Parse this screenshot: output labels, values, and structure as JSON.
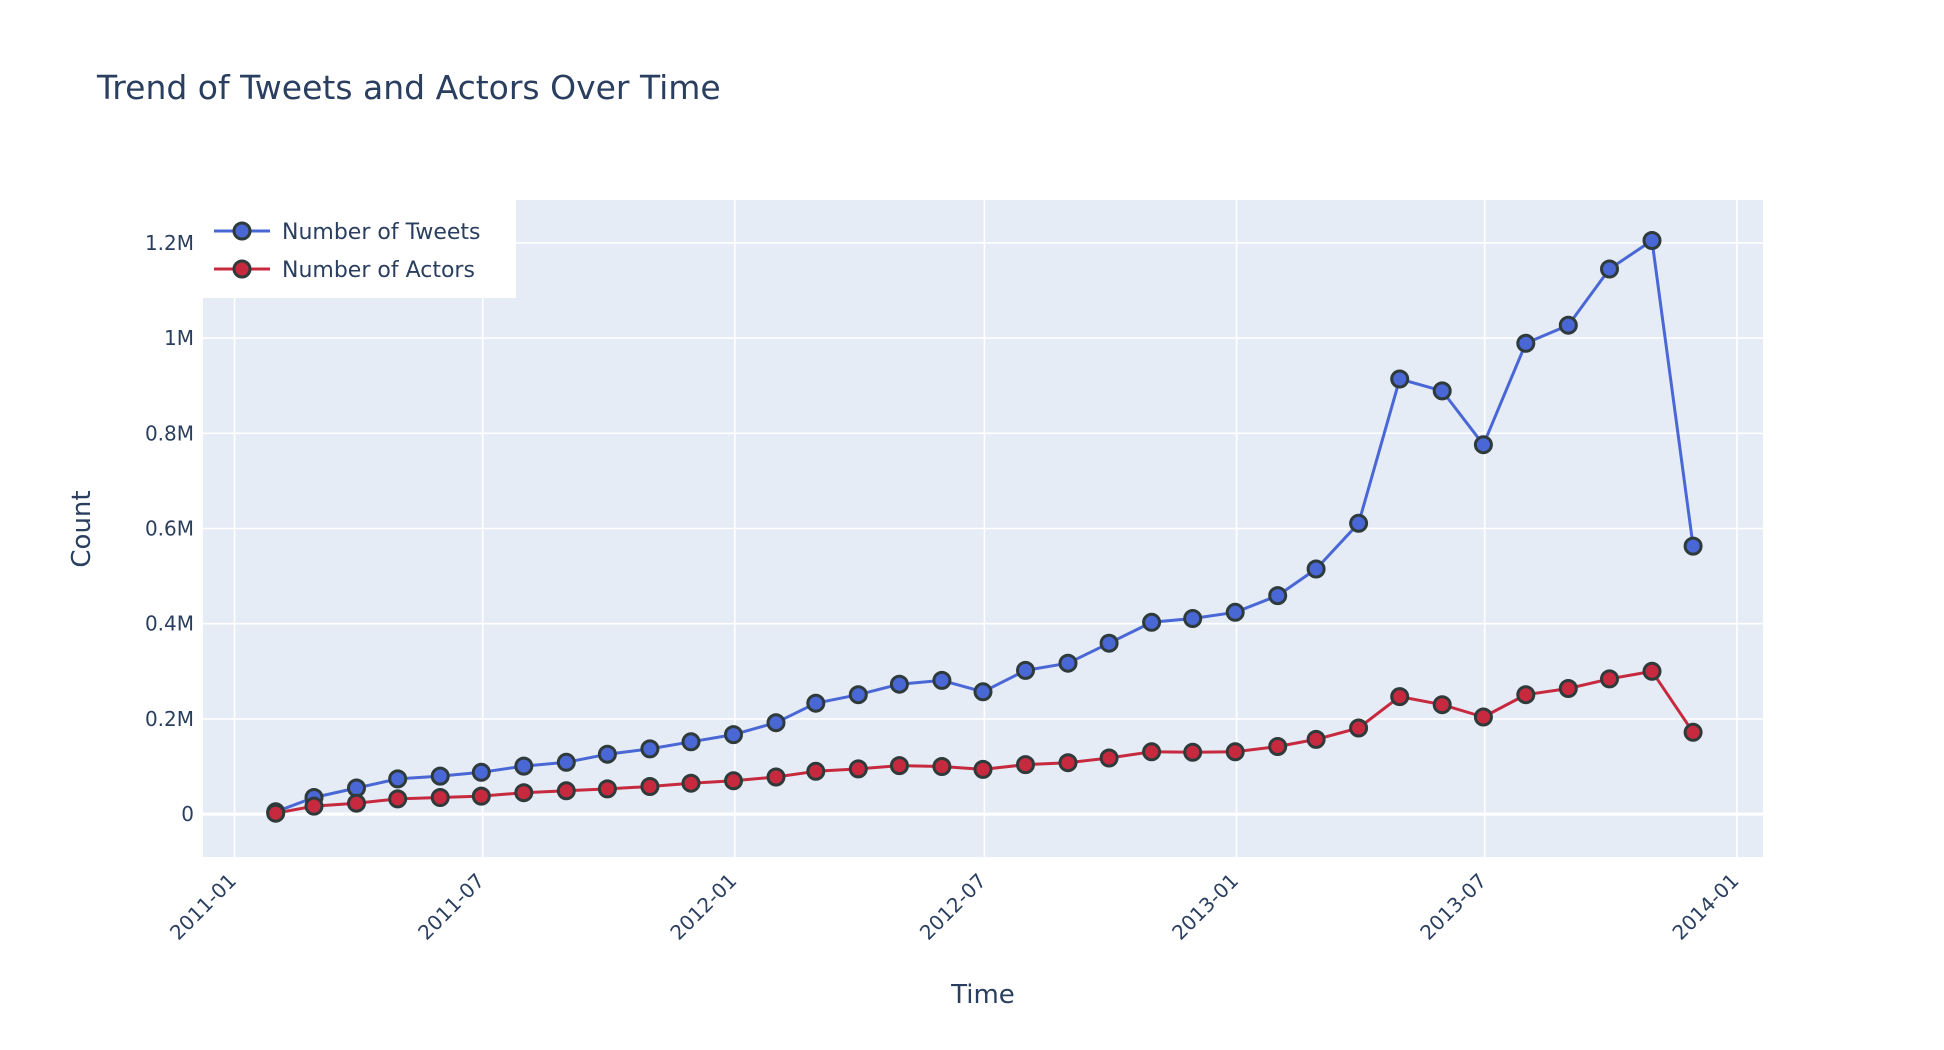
{
  "chart_data": {
    "type": "line",
    "title": "Trend of Tweets and Actors Over Time",
    "xlabel": "Time",
    "ylabel": "Count",
    "x_ticks": [
      "2011-01",
      "2011-07",
      "2012-01",
      "2012-07",
      "2013-01",
      "2013-07",
      "2014-01"
    ],
    "y_ticks": [
      {
        "value": 0,
        "label": "0"
      },
      {
        "value": 200000,
        "label": "0.2M"
      },
      {
        "value": 400000,
        "label": "0.4M"
      },
      {
        "value": 600000,
        "label": "0.6M"
      },
      {
        "value": 800000,
        "label": "0.8M"
      },
      {
        "value": 1000000,
        "label": "1M"
      },
      {
        "value": 1200000,
        "label": "1.2M"
      }
    ],
    "xlim": [
      "2010-12-09",
      "2014-01-20"
    ],
    "ylim": [
      -90000,
      1290000
    ],
    "grid": true,
    "legend_position": "top-left",
    "background_color": "#e5ecf6",
    "x": [
      "2011-01-31",
      "2011-02-28",
      "2011-03-31",
      "2011-04-30",
      "2011-05-31",
      "2011-06-30",
      "2011-07-31",
      "2011-08-31",
      "2011-09-30",
      "2011-10-31",
      "2011-11-30",
      "2011-12-31",
      "2012-01-31",
      "2012-02-29",
      "2012-03-31",
      "2012-04-30",
      "2012-05-31",
      "2012-06-30",
      "2012-07-31",
      "2012-08-31",
      "2012-09-30",
      "2012-10-31",
      "2012-11-30",
      "2012-12-31",
      "2013-01-31",
      "2013-02-28",
      "2013-03-31",
      "2013-04-30",
      "2013-05-31",
      "2013-06-30",
      "2013-07-31",
      "2013-08-31",
      "2013-09-30",
      "2013-10-31",
      "2013-11-30"
    ],
    "series": [
      {
        "name": "Number of Tweets",
        "color": "#4a67d6",
        "values": [
          5000,
          35000,
          55000,
          74000,
          80000,
          88000,
          101000,
          109000,
          126000,
          137000,
          152000,
          167000,
          192000,
          233000,
          251000,
          273000,
          281000,
          257000,
          302000,
          317000,
          359000,
          403000,
          411000,
          424000,
          459000,
          515000,
          611000,
          914000,
          889000,
          776000,
          989000,
          1027000,
          1145000,
          1205000,
          563000
        ]
      },
      {
        "name": "Number of Actors",
        "color": "#c72a3f",
        "values": [
          2000,
          17000,
          23000,
          32000,
          35000,
          38000,
          45000,
          49000,
          53000,
          58000,
          65000,
          70000,
          78000,
          90000,
          95000,
          102000,
          100000,
          94000,
          104000,
          108000,
          118000,
          131000,
          130000,
          131000,
          142000,
          157000,
          181000,
          247000,
          230000,
          204000,
          251000,
          264000,
          284000,
          300000,
          172000
        ]
      }
    ]
  }
}
